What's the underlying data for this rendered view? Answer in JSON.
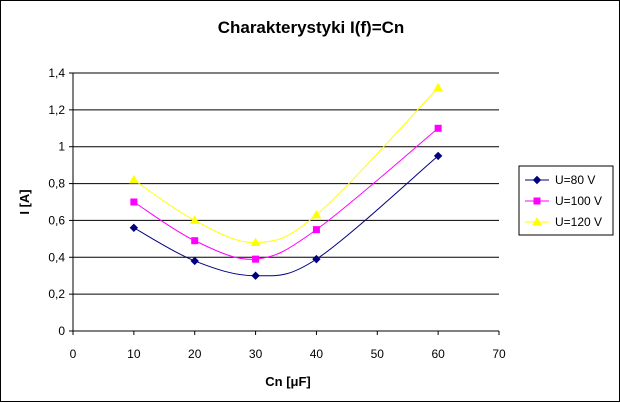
{
  "chart_data": {
    "type": "line",
    "title": "Charakterystyki I(f)=Cn",
    "xlabel": "Cn [μF]",
    "ylabel": "I [A]",
    "xlim": [
      0,
      70
    ],
    "ylim": [
      0,
      1.4
    ],
    "x_ticks": [
      0,
      10,
      20,
      30,
      40,
      50,
      60,
      70
    ],
    "y_ticks": [
      0,
      0.2,
      0.4,
      0.6,
      0.8,
      1,
      1.2,
      1.4
    ],
    "x_tick_labels": [
      "0",
      "10",
      "20",
      "30",
      "40",
      "50",
      "60",
      "70"
    ],
    "y_tick_labels": [
      "0",
      "0,2",
      "0,4",
      "0,6",
      "0,8",
      "1",
      "1,2",
      "1,4"
    ],
    "grid": "horizontal",
    "legend_position": "right",
    "x": [
      10,
      20,
      30,
      40,
      60
    ],
    "series": [
      {
        "name": "U=80 V",
        "color": "#000080",
        "marker": "diamond",
        "values": [
          0.56,
          0.38,
          0.3,
          0.39,
          0.95
        ]
      },
      {
        "name": "U=100 V",
        "color": "#FF00FF",
        "marker": "square",
        "values": [
          0.7,
          0.49,
          0.39,
          0.55,
          1.1
        ]
      },
      {
        "name": "U=120 V",
        "color": "#FFFF00",
        "marker": "triangle",
        "values": [
          0.82,
          0.6,
          0.48,
          0.63,
          1.32
        ]
      }
    ]
  }
}
